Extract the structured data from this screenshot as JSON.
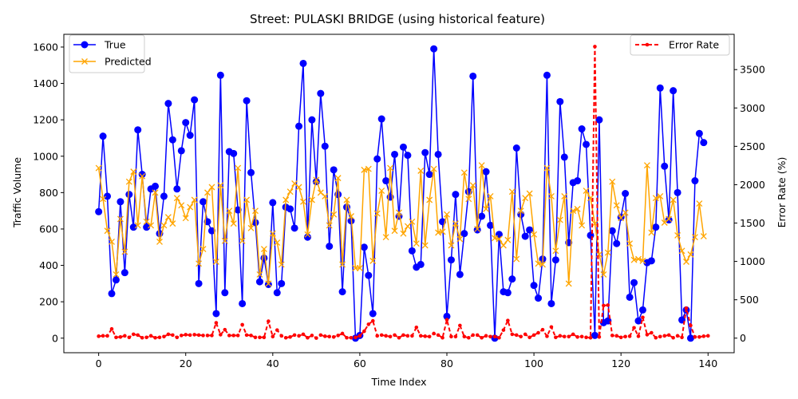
{
  "chart_data": {
    "type": "line",
    "title": "Street: PULASKI BRIDGE (using historical feature)",
    "xlabel": "Time Index",
    "ylabel": "Traffic Volume",
    "y2label": "Error Rate (%)",
    "xlim": [
      -8,
      146
    ],
    "ylim": [
      -80,
      1670
    ],
    "y2lim": [
      -190,
      3960
    ],
    "x_ticks": [
      0,
      20,
      40,
      60,
      80,
      100,
      120,
      140
    ],
    "y_ticks": [
      0,
      200,
      400,
      600,
      800,
      1000,
      1200,
      1400,
      1600
    ],
    "y2_ticks": [
      0,
      500,
      1000,
      1500,
      2000,
      2500,
      3000,
      3500
    ],
    "legend_left": {
      "placement": "upper-left",
      "entries": [
        "True",
        "Predicted"
      ]
    },
    "legend_right": {
      "placement": "upper-right",
      "entries": [
        "Error Rate"
      ]
    },
    "colors": {
      "true": "#0000ff",
      "predicted": "#ffa500",
      "error": "#ff0000"
    },
    "series": [
      {
        "name": "True",
        "axis": "left",
        "marker": "circle",
        "values": [
          695,
          1110,
          780,
          245,
          320,
          750,
          360,
          790,
          610,
          1145,
          900,
          610,
          820,
          835,
          575,
          780,
          1290,
          1090,
          820,
          1030,
          1185,
          1115,
          1310,
          300,
          750,
          640,
          590,
          135,
          1445,
          250,
          1025,
          1015,
          705,
          190,
          1305,
          910,
          635,
          310,
          440,
          295,
          745,
          250,
          300,
          720,
          710,
          605,
          1165,
          1510,
          555,
          1200,
          860,
          1345,
          1055,
          505,
          925,
          790,
          255,
          720,
          645,
          0,
          15,
          500,
          345,
          135,
          985,
          1205,
          865,
          775,
          1010,
          670,
          1050,
          1005,
          480,
          390,
          405,
          1020,
          900,
          1590,
          1010,
          640,
          120,
          430,
          790,
          350,
          575,
          805,
          1440,
          595,
          670,
          915,
          620,
          0,
          570,
          255,
          250,
          325,
          1045,
          680,
          560,
          595,
          290,
          220,
          435,
          1445,
          190,
          430,
          1300,
          995,
          525,
          855,
          865,
          1150,
          1065,
          565,
          15,
          1200,
          85,
          95,
          590,
          520,
          665,
          795,
          225,
          305,
          95,
          155,
          415,
          425,
          610,
          1375,
          945,
          650,
          1360,
          800,
          100,
          155,
          0,
          865,
          1125,
          1075
        ]
      },
      {
        "name": "Predicted",
        "axis": "left",
        "marker": "x",
        "values": [
          935,
          765,
          590,
          530,
          350,
          655,
          475,
          860,
          915,
          620,
          890,
          640,
          620,
          800,
          530,
          620,
          665,
          630,
          770,
          730,
          660,
          720,
          760,
          410,
          490,
          800,
          830,
          420,
          840,
          535,
          700,
          630,
          935,
          535,
          760,
          605,
          700,
          350,
          490,
          300,
          575,
          525,
          405,
          760,
          805,
          850,
          830,
          750,
          570,
          760,
          870,
          800,
          780,
          620,
          680,
          880,
          405,
          760,
          670,
          385,
          385,
          925,
          930,
          425,
          685,
          810,
          555,
          935,
          590,
          690,
          575,
          615,
          640,
          520,
          920,
          510,
          760,
          930,
          580,
          585,
          680,
          510,
          630,
          545,
          910,
          765,
          840,
          600,
          950,
          710,
          780,
          550,
          545,
          510,
          540,
          805,
          435,
          700,
          770,
          795,
          570,
          410,
          405,
          935,
          780,
          480,
          650,
          780,
          300,
          700,
          710,
          620,
          810,
          770,
          630,
          460,
          350,
          470,
          860,
          730,
          660,
          690,
          520,
          430,
          435,
          425,
          950,
          580,
          770,
          780,
          635,
          655,
          760,
          565,
          480,
          420,
          460,
          555,
          740,
          560
        ]
      },
      {
        "name": "Error Rate",
        "axis": "right",
        "style": "dashed",
        "values": [
          25,
          30,
          30,
          120,
          10,
          15,
          30,
          10,
          50,
          40,
          5,
          10,
          30,
          5,
          10,
          20,
          50,
          40,
          10,
          35,
          45,
          40,
          45,
          40,
          35,
          35,
          35,
          200,
          45,
          110,
          35,
          35,
          35,
          175,
          40,
          35,
          10,
          10,
          10,
          220,
          20,
          105,
          30,
          5,
          15,
          40,
          30,
          50,
          5,
          35,
          1,
          40,
          25,
          20,
          15,
          35,
          60,
          5,
          5,
          10,
          30,
          90,
          180,
          225,
          30,
          40,
          30,
          20,
          40,
          5,
          40,
          30,
          30,
          140,
          30,
          25,
          20,
          60,
          40,
          5,
          240,
          20,
          20,
          165,
          20,
          5,
          40,
          40,
          5,
          30,
          20,
          20,
          5,
          105,
          230,
          50,
          40,
          20,
          50,
          10,
          40,
          70,
          110,
          25,
          145,
          10,
          30,
          20,
          20,
          50,
          15,
          20,
          10,
          5,
          3800,
          15,
          425,
          430,
          35,
          30,
          10,
          20,
          25,
          135,
          25,
          270,
          45,
          70,
          5,
          20,
          30,
          40,
          5,
          30,
          10,
          390,
          165,
          15,
          15,
          25,
          30
        ]
      }
    ]
  }
}
